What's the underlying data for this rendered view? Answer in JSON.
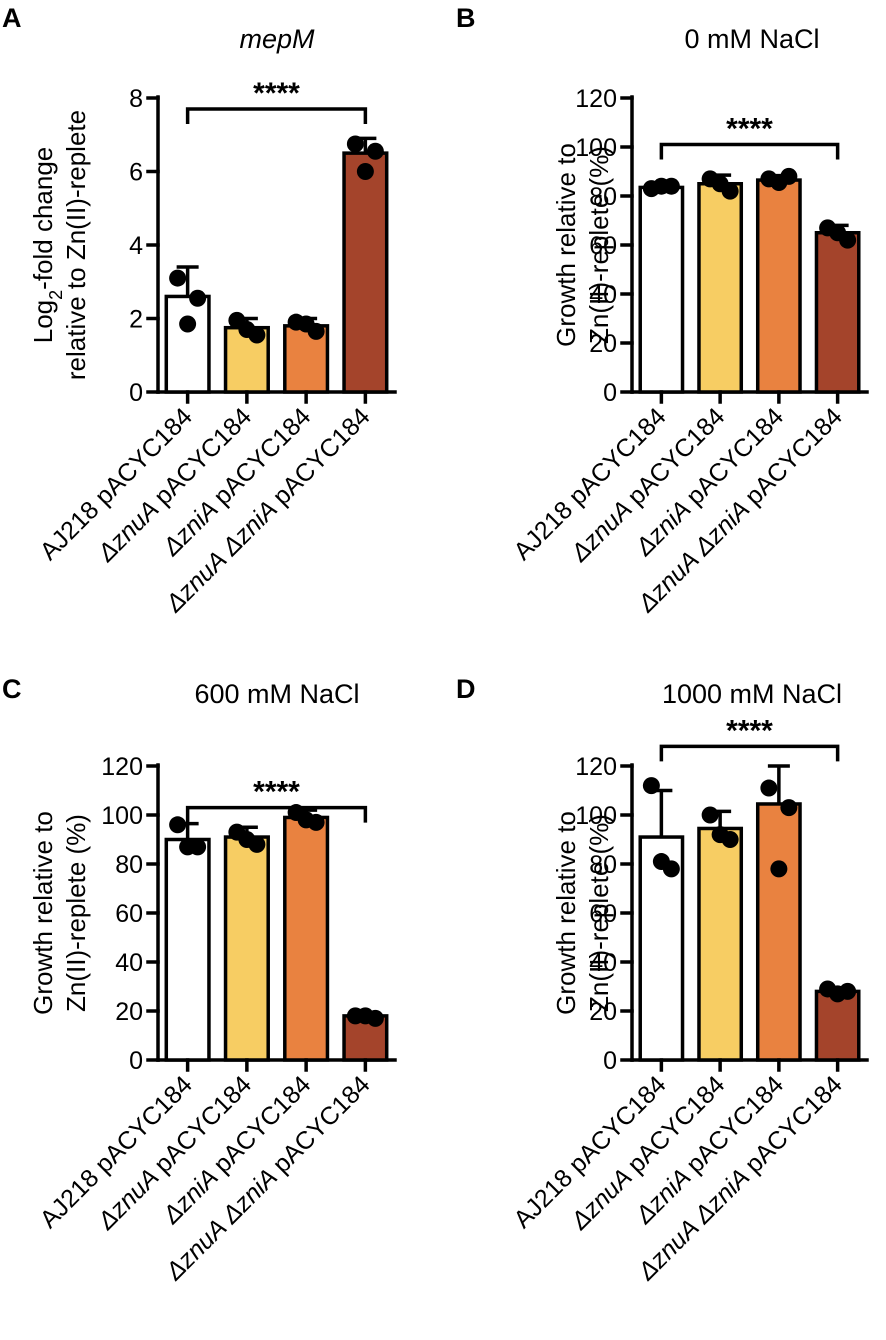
{
  "colors": {
    "bars": [
      "#ffffff",
      "#f7cd63",
      "#e98240",
      "#a4442b"
    ],
    "stroke": "#000000"
  },
  "chart_data": [
    {
      "panel": "A",
      "type": "bar",
      "title": "mepM",
      "title_italic": true,
      "ylabel_line1_pre": "Log",
      "ylabel_line1_sub": "2",
      "ylabel_line1_post": "-fold change",
      "ylabel_line2": "relative to Zn(II)-replete",
      "ylim": [
        0,
        8
      ],
      "yticks": [
        0,
        2,
        4,
        6,
        8
      ],
      "categories": [
        "AJ218 pACYC184",
        "ΔznuA pACYC184",
        "ΔzniA pACYC184",
        "ΔznuA ΔzniA pACYC184"
      ],
      "values": [
        2.6,
        1.75,
        1.8,
        6.5
      ],
      "errors": [
        0.8,
        0.25,
        0.2,
        0.4
      ],
      "points": [
        [
          3.1,
          2.55,
          1.85
        ],
        [
          1.95,
          1.55,
          1.7
        ],
        [
          1.9,
          1.65,
          1.85
        ],
        [
          6.75,
          6.55,
          6.0
        ]
      ],
      "significance": {
        "label": "****",
        "from": 0,
        "to": 3,
        "y": 7.7
      }
    },
    {
      "panel": "B",
      "type": "bar",
      "title": "0 mM NaCl",
      "title_italic": false,
      "ylabel_line1": "Growth relative to",
      "ylabel_line2": "Zn(II)-replete (%)",
      "ylim": [
        0,
        120
      ],
      "yticks": [
        0,
        20,
        40,
        60,
        80,
        100,
        120
      ],
      "categories": [
        "AJ218 pACYC184",
        "ΔznuA pACYC184",
        "ΔzniA pACYC184",
        "ΔznuA ΔzniA pACYC184"
      ],
      "values": [
        83.5,
        85,
        86.5,
        65
      ],
      "errors": [
        0.8,
        3.5,
        1.8,
        3.0
      ],
      "points": [
        [
          83,
          84,
          84
        ],
        [
          87,
          82,
          85
        ],
        [
          87,
          88,
          85.5
        ],
        [
          67,
          62,
          65
        ]
      ],
      "significance": {
        "label": "****",
        "from": 0,
        "to": 3,
        "y": 101
      }
    },
    {
      "panel": "C",
      "type": "bar",
      "title": "600 mM NaCl",
      "title_italic": false,
      "ylabel_line1": "Growth relative to",
      "ylabel_line2": "Zn(II)-replete (%)",
      "ylim": [
        0,
        120
      ],
      "yticks": [
        0,
        20,
        40,
        60,
        80,
        100,
        120
      ],
      "categories": [
        "AJ218 pACYC184",
        "ΔznuA pACYC184",
        "ΔzniA pACYC184",
        "ΔznuA ΔzniA pACYC184"
      ],
      "values": [
        90,
        91,
        99,
        18
      ],
      "errors": [
        6.5,
        4.0,
        3.0,
        1.0
      ],
      "points": [
        [
          96,
          87,
          87
        ],
        [
          93,
          88,
          90
        ],
        [
          101,
          97,
          98
        ],
        [
          18,
          17,
          18
        ]
      ],
      "significance": {
        "label": "****",
        "from": 0,
        "to": 3,
        "y": 103
      }
    },
    {
      "panel": "D",
      "type": "bar",
      "title": "1000 mM NaCl",
      "title_italic": false,
      "ylabel_line1": "Growth relative to",
      "ylabel_line2": "Zn(II)-replete (%)",
      "ylim": [
        0,
        120
      ],
      "yticks": [
        0,
        20,
        40,
        60,
        80,
        100,
        120
      ],
      "categories": [
        "AJ218 pACYC184",
        "ΔznuA pACYC184",
        "ΔzniA pACYC184",
        "ΔznuA ΔzniA pACYC184"
      ],
      "values": [
        91,
        94.5,
        104.5,
        28
      ],
      "errors": [
        19,
        7.0,
        15.5,
        1.5
      ],
      "points": [
        [
          112,
          78,
          81
        ],
        [
          100,
          90,
          92
        ],
        [
          111,
          103,
          78
        ],
        [
          29,
          28,
          27
        ]
      ],
      "significance": {
        "label": "****",
        "from": 0,
        "to": 3,
        "y": 128
      }
    }
  ]
}
